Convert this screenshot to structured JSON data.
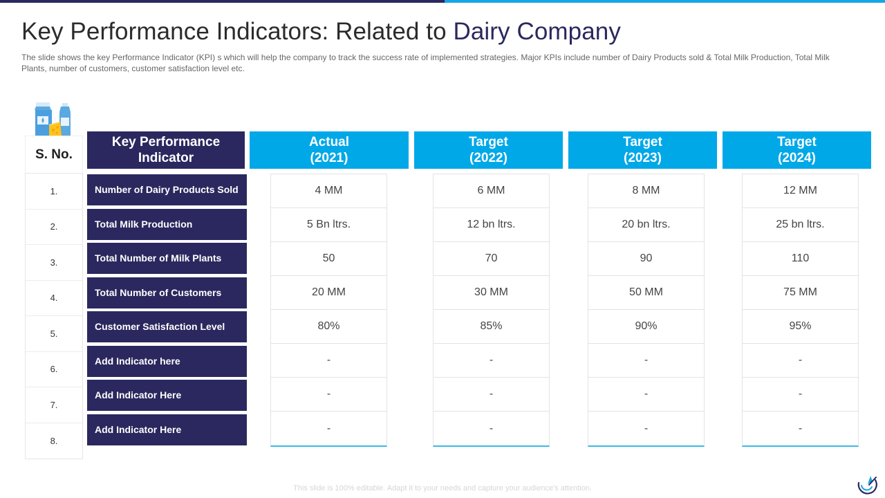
{
  "slide": {
    "title_main": "Key Performance Indicators: Related to ",
    "title_accent": "Dairy Company",
    "subtitle": "The slide shows the key Performance Indicator (KPI) s which will help the company to track the success rate of implemented strategies. Major KPIs include number of Dairy Products sold & Total Milk Production, Total Milk Plants, number of customers, customer satisfaction level etc.",
    "footer_note": "This slide is 100% editable. Adapt it to your needs and capture your audience's attention.",
    "icons": {
      "product_icon": "dairy-products-icon",
      "logo": "brand-logo-icon"
    },
    "colors": {
      "dark_navy": "#2a285e",
      "light_blue": "#00a8e8"
    }
  },
  "table": {
    "sno_header": "S. No.",
    "kpi_header": "Key Performance Indicator",
    "columns": [
      {
        "label": "Actual",
        "year": "(2021)",
        "values": [
          "4 MM",
          "5 Bn ltrs.",
          "50",
          "20 MM",
          "80%",
          "-",
          "-",
          "-"
        ]
      },
      {
        "label": "Target",
        "year": "(2022)",
        "values": [
          "6 MM",
          "12 bn ltrs.",
          "70",
          "30 MM",
          "85%",
          "-",
          "-",
          "-"
        ]
      },
      {
        "label": "Target",
        "year": "(2023)",
        "values": [
          "8 MM",
          "20 bn ltrs.",
          "90",
          "50 MM",
          "90%",
          "-",
          "-",
          "-"
        ]
      },
      {
        "label": "Target",
        "year": "(2024)",
        "values": [
          "12 MM",
          "25 bn ltrs.",
          "110",
          "75 MM",
          "95%",
          "-",
          "-",
          "-"
        ]
      }
    ],
    "rows": [
      {
        "sno": "1.",
        "kpi": "Number of Dairy Products Sold"
      },
      {
        "sno": "2.",
        "kpi": "Total Milk Production"
      },
      {
        "sno": "3.",
        "kpi": "Total Number of Milk Plants"
      },
      {
        "sno": "4.",
        "kpi": "Total Number of Customers"
      },
      {
        "sno": "5.",
        "kpi": "Customer Satisfaction Level"
      },
      {
        "sno": "6.",
        "kpi": "Add  Indicator here"
      },
      {
        "sno": "7.",
        "kpi": "Add  Indicator Here"
      },
      {
        "sno": "8.",
        "kpi": "Add  Indicator Here"
      }
    ]
  }
}
